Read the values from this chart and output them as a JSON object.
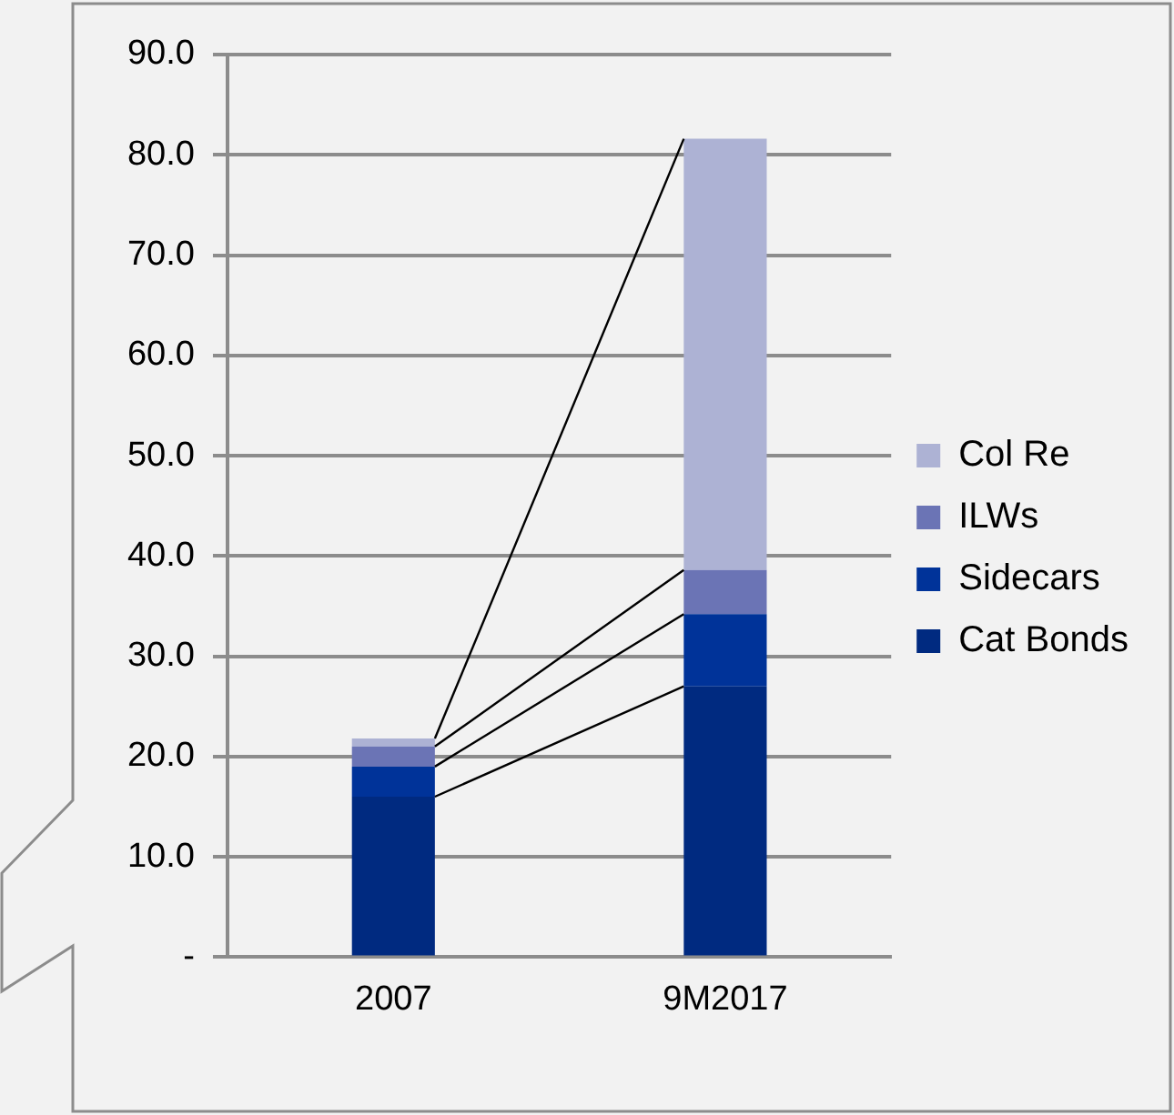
{
  "chart_data": {
    "type": "bar",
    "stacked": true,
    "categories": [
      "2007",
      "9M2017"
    ],
    "series": [
      {
        "name": "Cat Bonds",
        "color": "#002a80",
        "values": [
          16,
          27
        ]
      },
      {
        "name": "Sidecars",
        "color": "#003399",
        "values": [
          3,
          7.2
        ]
      },
      {
        "name": "ILWs",
        "color": "#6b74b5",
        "values": [
          2,
          4.4
        ]
      },
      {
        "name": "Col Re",
        "color": "#adb2d4",
        "values": [
          0.8,
          43
        ]
      }
    ],
    "ylim": [
      0,
      90
    ],
    "yticks": [
      {
        "value": 0,
        "label": "-"
      },
      {
        "value": 10,
        "label": "10.0"
      },
      {
        "value": 20,
        "label": "20.0"
      },
      {
        "value": 30,
        "label": "30.0"
      },
      {
        "value": 40,
        "label": "40.0"
      },
      {
        "value": 50,
        "label": "50.0"
      },
      {
        "value": 60,
        "label": "60.0"
      },
      {
        "value": 70,
        "label": "70.0"
      },
      {
        "value": 80,
        "label": "80.0"
      },
      {
        "value": 90,
        "label": "90.0"
      }
    ],
    "grid": "y",
    "legend": "right"
  }
}
